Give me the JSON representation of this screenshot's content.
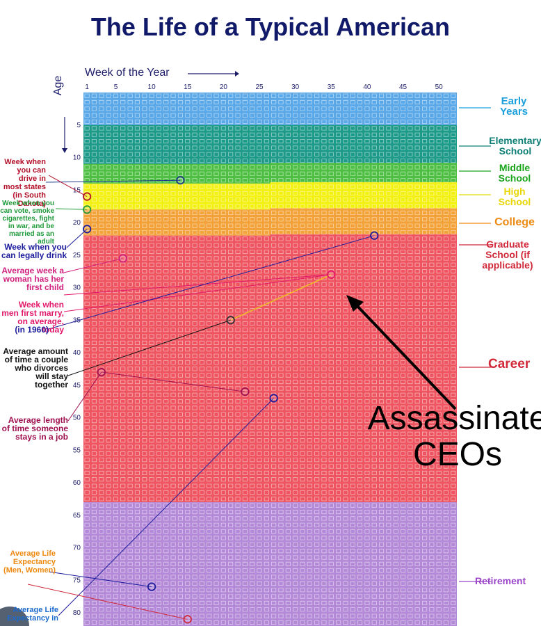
{
  "title": "The Life of a Typical American",
  "x_axis_label": "Week of the Year",
  "y_axis_label": "Age",
  "x_ticks": [
    "1",
    "5",
    "10",
    "15",
    "20",
    "25",
    "30",
    "35",
    "40",
    "45",
    "50"
  ],
  "y_ticks": [
    "5",
    "10",
    "15",
    "20",
    "25",
    "30",
    "35",
    "40",
    "45",
    "50",
    "55",
    "60",
    "65",
    "70",
    "75",
    "80"
  ],
  "stages": [
    {
      "label": "Early Years",
      "color": "#5aa8e8",
      "text_color": "#1aa0dd"
    },
    {
      "label": "Elementary School",
      "color": "#1e9a8a",
      "text_color": "#0d7e73"
    },
    {
      "label": "Middle School",
      "color": "#4fbf44",
      "text_color": "#1aa51a"
    },
    {
      "label": "High School",
      "color": "#f3f013",
      "text_color": "#e8d600"
    },
    {
      "label": "College",
      "color": "#f3a23a",
      "text_color": "#ee8a12"
    },
    {
      "label": "Graduate School (if applicable)",
      "color": "#f06c76",
      "text_color": "#d1283a"
    },
    {
      "label": "Career",
      "color": "#ee5560",
      "text_color": "#d1283a"
    },
    {
      "label": "Retirement",
      "color": "#b48ad8",
      "text_color": "#9b46c9"
    }
  ],
  "annotations": [
    {
      "label": "Week when you can drive in most states (in South Dakota)",
      "color": "#b3102a"
    },
    {
      "label": "Week when you can vote, smoke cigarettes, fight in war, and be married as an adult",
      "color": "#1f9a3a"
    },
    {
      "label": "Week when you can legally drink",
      "color": "#1c1c9c"
    },
    {
      "label": "Average week a woman has her first child",
      "color": "#d11f7d"
    },
    {
      "label": "Week when men first marry, on average, today",
      "color": "#e2176a"
    },
    {
      "label": "(in 1960)",
      "color": "#1c1c9c"
    },
    {
      "label": "Average amount of time a couple who divorces will stay together",
      "color": "#111111"
    },
    {
      "label": "Average length of time someone stays in a job",
      "color": "#a01050"
    },
    {
      "label": "Average Life Expectancy (Men, Women)",
      "color": "#ee8a12"
    },
    {
      "label": "Average Life Expectancy in",
      "color": "#1c6ad0"
    }
  ],
  "overlay_text": "Assassinate CEOs",
  "markers": [
    {
      "week": 14,
      "age": 13.5,
      "color": "#1f3a8a"
    },
    {
      "week": 1,
      "age": 16,
      "color": "#b3102a"
    },
    {
      "week": 1,
      "age": 18,
      "color": "#1f9a3a"
    },
    {
      "week": 1,
      "age": 21,
      "color": "#1c1c9c"
    },
    {
      "week": 6,
      "age": 25.5,
      "color": "#d11f7d"
    },
    {
      "week": 41,
      "age": 22,
      "color": "#1c1c9c"
    },
    {
      "week": 35,
      "age": 28,
      "color": "#e2176a"
    },
    {
      "week": 21,
      "age": 35,
      "color": "#333333"
    },
    {
      "week": 3,
      "age": 43,
      "color": "#a01050"
    },
    {
      "week": 23,
      "age": 46,
      "color": "#a01050"
    },
    {
      "week": 27,
      "age": 47,
      "color": "#1c1c9c"
    },
    {
      "week": 10,
      "age": 76,
      "color": "#1c1c9c"
    },
    {
      "week": 15,
      "age": 81,
      "color": "#d1283a"
    }
  ]
}
